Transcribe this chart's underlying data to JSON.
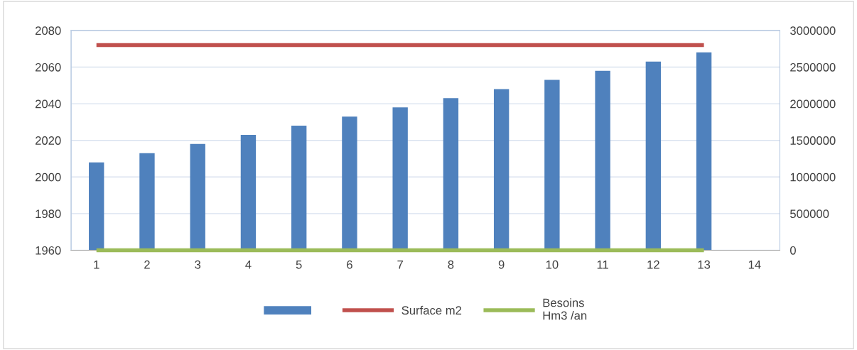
{
  "chart_data": {
    "type": "bar",
    "categories": [
      "1",
      "2",
      "3",
      "4",
      "5",
      "6",
      "7",
      "8",
      "9",
      "10",
      "11",
      "12",
      "13",
      "14"
    ],
    "series": [
      {
        "color": "#4f81bd",
        "values": [
          2008,
          2013,
          2018,
          2023,
          2028,
          2033,
          2038,
          2043,
          2048,
          2053,
          2058,
          2063,
          2068,
          null
        ]
      },
      {
        "type": "line",
        "name": "Surface m2",
        "color": "#c0504d",
        "axis": "y2",
        "values": [
          2800000,
          2800000,
          2800000,
          2800000,
          2800000,
          2800000,
          2800000,
          2800000,
          2800000,
          2800000,
          2800000,
          2800000,
          2800000,
          null
        ]
      },
      {
        "type": "line",
        "name": "Besoins\nHm3 /an",
        "color": "#9bbb59",
        "axis": "y2",
        "values": [
          0,
          0,
          0,
          0,
          0,
          0,
          0,
          0,
          0,
          0,
          0,
          0,
          0,
          null
        ]
      }
    ],
    "ylim": [
      1960,
      2080
    ],
    "yticks": [
      1960,
      1980,
      2000,
      2020,
      2040,
      2060,
      2080
    ],
    "y2lim": [
      0,
      3000000
    ],
    "y2ticks": [
      0,
      500000,
      1000000,
      1500000,
      2000000,
      2500000,
      3000000
    ],
    "grid": "y",
    "legend": "bottom",
    "marker": "none",
    "line_style": "solid"
  }
}
